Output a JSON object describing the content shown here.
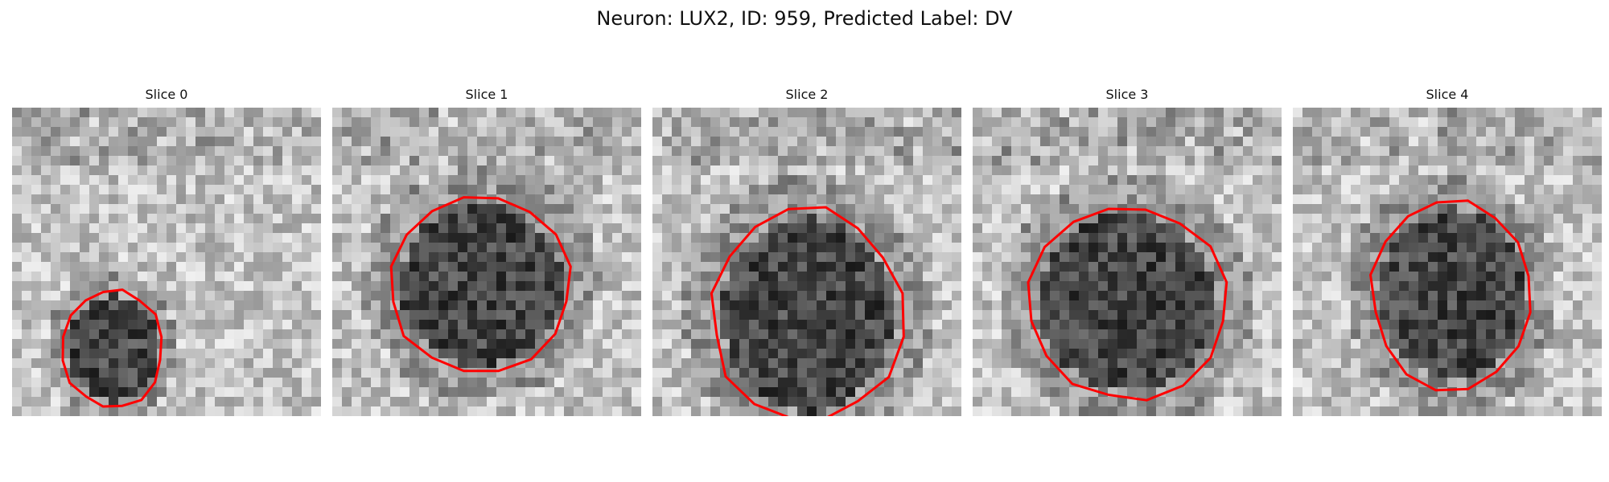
{
  "figure": {
    "title": "Neuron: LUX2, ID: 959, Predicted Label: DV",
    "contour_color": "#ff0000",
    "colormap": "grayscale",
    "panels": [
      {
        "title": "Slice 0"
      },
      {
        "title": "Slice 1"
      },
      {
        "title": "Slice 2"
      },
      {
        "title": "Slice 3"
      },
      {
        "title": "Slice 4"
      }
    ]
  }
}
